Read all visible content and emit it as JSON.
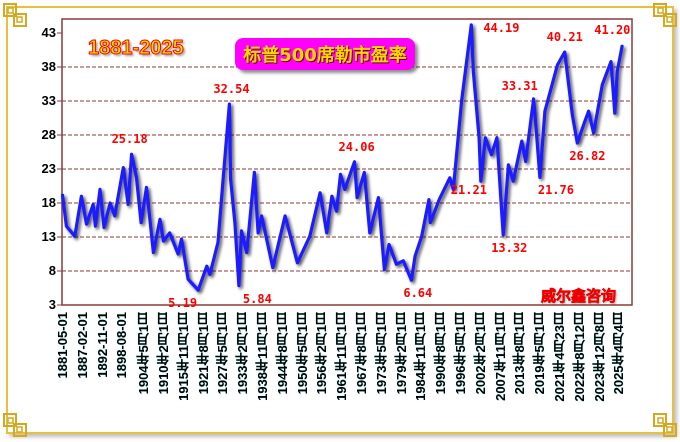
{
  "chart_data": {
    "type": "line",
    "title": "标普500席勒市盈率",
    "subtitle": "1881-2025",
    "watermark": "威尔鑫咨询",
    "xlabel": "",
    "ylabel": "",
    "ylim": [
      3,
      43
    ],
    "yticks": [
      "43",
      "38",
      "33",
      "28",
      "23",
      "18",
      "13",
      "8",
      "3"
    ],
    "xticks": [
      "1881-05-01",
      "1887-02-01",
      "1892-11-01",
      "1898-08-01",
      "1904年5月1日",
      "1910年2月1日",
      "1915年11月1日",
      "1921年8月1日",
      "1927年5月1日",
      "1933年2月1日",
      "1938年11月1日",
      "1944年8月1日",
      "1950年5月1日",
      "1956年2月1日",
      "1961年11月1日",
      "1967年8月1日",
      "1973年5月1日",
      "1979年2月1日",
      "1984年11月1日",
      "1990年8月1日",
      "1996年5月1日",
      "2002年2月1日",
      "2007年11月1日",
      "2013年8月1日",
      "2019年5月1日",
      "2021年4月23日",
      "2022年8月12日",
      "2023年12月8日",
      "2025年4月4日"
    ],
    "grid": true,
    "colors": {
      "line": "#1a1aff",
      "grid": "#8b3a3a",
      "annotation": "#ff0000",
      "title_bg": "#ff00ff"
    },
    "series": [
      {
        "x": [
          "1881-03",
          "1882-05",
          "1884-10",
          "1886-09",
          "1888-03",
          "1890-02",
          "1890-10",
          "1892-02",
          "1893-04",
          "1895-01",
          "1896-05",
          "1898-11",
          "1900-04",
          "1901-04",
          "1902-09",
          "1904-01",
          "1905-08",
          "1907-08",
          "1909-07",
          "1910-07",
          "1912-05",
          "1914-10",
          "1915-10",
          "1917-09",
          "1920-08",
          "1923-02",
          "1924-01",
          "1926-05",
          "1927-11",
          "1929-09",
          "1930-01",
          "1931-04",
          "1932-06",
          "1933-03",
          "1934-09",
          "1936-12",
          "1938-01",
          "1939-01",
          "1942-04",
          "1945-11",
          "1949-06",
          "1953-01",
          "1956-01",
          "1957-12",
          "1959-06",
          "1960-10",
          "1961-12",
          "1963-03",
          "1966-01",
          "1966-10",
          "1968-11",
          "1970-06",
          "1972-12",
          "1974-09",
          "1976-01",
          "1978-03",
          "1980-03",
          "1982-07",
          "1983-08",
          "1985-07",
          "1987-08",
          "1988-01",
          "1990-08",
          "1993-09",
          "1994-09",
          "1997-02",
          "1999-12",
          "2000-07",
          "2002-03",
          "2002-09",
          "2004-01",
          "2005-10",
          "2007-05",
          "2009-03",
          "2010-09",
          "2012-02",
          "2014-08",
          "2015-09",
          "2018-01",
          "2018-10",
          "2019-07",
          "2020-01",
          "2021-04",
          "2021-10",
          "2022-04",
          "2022-08",
          "2023-02",
          "2023-05",
          "2023-09",
          "2024-04",
          "2024-11",
          "2025-02",
          "2025-04",
          "2025-08"
        ],
        "y": [
          19.3,
          14.6,
          13.1,
          19.0,
          14.9,
          17.8,
          14.6,
          20.0,
          14.4,
          18.0,
          16.1,
          23.2,
          17.8,
          25.18,
          21.7,
          15.1,
          20.3,
          10.7,
          15.6,
          12.4,
          13.6,
          10.5,
          12.7,
          6.8,
          5.19,
          8.7,
          7.5,
          12.2,
          21.5,
          32.54,
          21.5,
          15.1,
          5.84,
          13.9,
          10.7,
          22.5,
          13.6,
          16.1,
          8.5,
          16.1,
          9.2,
          13.1,
          19.5,
          13.6,
          19.0,
          16.8,
          22.2,
          20.0,
          24.06,
          18.8,
          22.5,
          13.6,
          18.8,
          8.2,
          11.9,
          9.0,
          9.5,
          6.64,
          10.2,
          13.1,
          18.5,
          15.1,
          18.5,
          21.7,
          20.0,
          33.0,
          44.19,
          37.4,
          27.6,
          21.21,
          27.6,
          25.1,
          27.6,
          13.32,
          23.6,
          21.2,
          27.1,
          24.1,
          33.31,
          28.8,
          21.76,
          31.5,
          38.3,
          40.21,
          31.0,
          26.82,
          30.0,
          31.5,
          28.3,
          35.4,
          38.8,
          31.2,
          37.4,
          41.2
        ]
      }
    ],
    "annotations": [
      {
        "x": "1901-04",
        "label": "25.18"
      },
      {
        "x": "1920-08",
        "label": "5.19"
      },
      {
        "x": "1929-09",
        "label": "32.54"
      },
      {
        "x": "1932-06",
        "label": "5.84"
      },
      {
        "x": "1966-01",
        "label": "24.06"
      },
      {
        "x": "1982-07",
        "label": "6.64"
      },
      {
        "x": "1999-12",
        "label": "44.19"
      },
      {
        "x": "2002-09",
        "label": "21.21"
      },
      {
        "x": "2009-03",
        "label": "13.32"
      },
      {
        "x": "2018-01",
        "label": "33.31"
      },
      {
        "x": "2019-07",
        "label": "21.76"
      },
      {
        "x": "2021-10",
        "label": "40.21"
      },
      {
        "x": "2022-08",
        "label": "26.82"
      },
      {
        "x": "2025-08",
        "label": "41.20"
      }
    ]
  }
}
